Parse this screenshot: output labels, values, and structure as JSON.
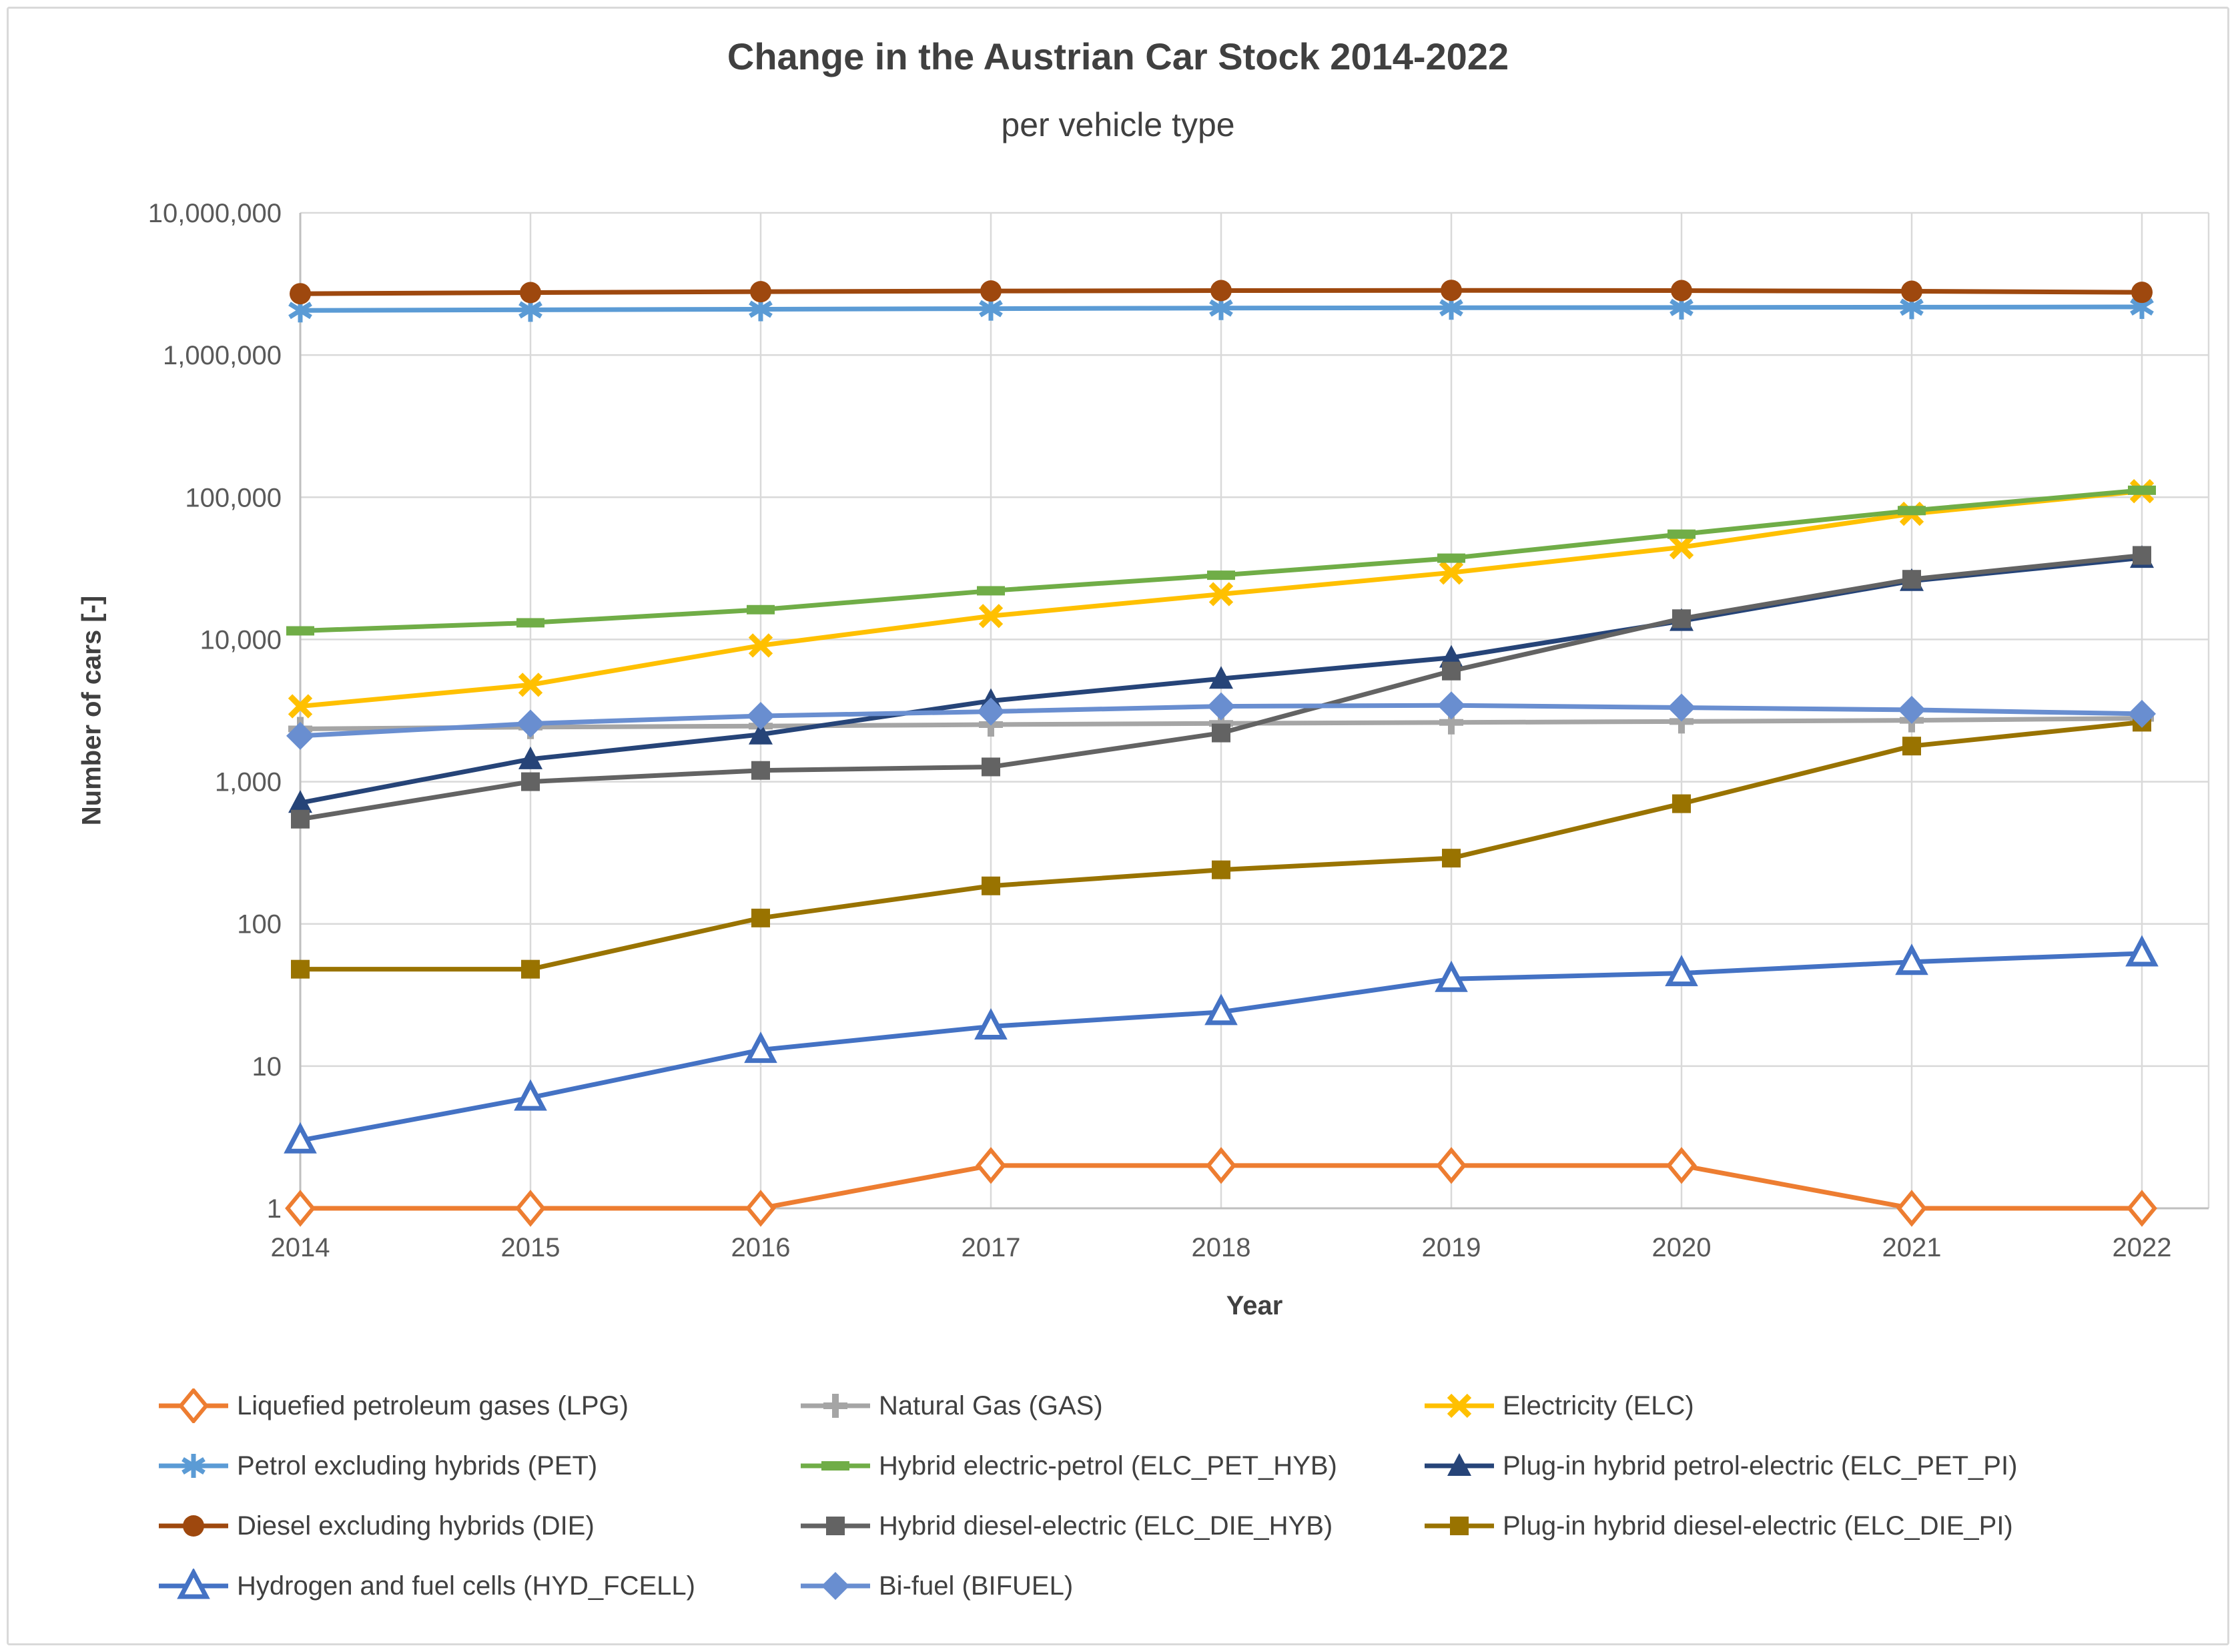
{
  "chart_data": {
    "type": "line",
    "title": "Change in the Austrian Car Stock 2014-2022",
    "subtitle": "per vehicle type",
    "xlabel": "Year",
    "ylabel": "Number of cars [-]",
    "y_scale": "log",
    "ylim": [
      1,
      10000000
    ],
    "grid": true,
    "legend_position": "bottom",
    "y_ticks": [
      1,
      10,
      100,
      1000,
      10000,
      100000,
      1000000,
      10000000
    ],
    "y_tick_labels": [
      "1",
      "10",
      "100",
      "1,000",
      "10,000",
      "100,000",
      "1,000,000",
      "10,000,000"
    ],
    "x": [
      2014,
      2015,
      2016,
      2017,
      2018,
      2019,
      2020,
      2021,
      2022
    ],
    "series": [
      {
        "name": "Liquefied petroleum gases (LPG)",
        "code": "LPG",
        "color": "#ED7D31",
        "marker": "diamond-open",
        "values": [
          1,
          1,
          1,
          2,
          2,
          2,
          2,
          1,
          1
        ]
      },
      {
        "name": "Natural Gas (GAS)",
        "code": "GAS",
        "color": "#A5A5A5",
        "marker": "plus",
        "values": [
          2350,
          2420,
          2460,
          2520,
          2570,
          2610,
          2650,
          2700,
          2790
        ]
      },
      {
        "name": "Electricity (ELC)",
        "code": "ELC",
        "color": "#FFC000",
        "marker": "x",
        "values": [
          3390,
          4800,
          9070,
          14620,
          20830,
          29520,
          44510,
          76540,
          110370
        ]
      },
      {
        "name": "Petrol excluding hybrids (PET)",
        "code": "PET",
        "color": "#5B9BD5",
        "marker": "asterisk",
        "values": [
          2060000,
          2080000,
          2100000,
          2120000,
          2140000,
          2150000,
          2160000,
          2170000,
          2180000
        ]
      },
      {
        "name": "Hybrid electric-petrol (ELC_PET_HYB)",
        "code": "ELC_PET_HYB",
        "color": "#70AD47",
        "marker": "dash",
        "values": [
          11500,
          13100,
          16200,
          22000,
          28300,
          37300,
          55000,
          80600,
          112000
        ]
      },
      {
        "name": "Plug-in hybrid petrol-electric (ELC_PET_PI)",
        "code": "ELC_PET_PI",
        "color": "#264478",
        "marker": "triangle",
        "values": [
          710,
          1440,
          2150,
          3700,
          5300,
          7450,
          13500,
          25800,
          37500
        ]
      },
      {
        "name": "Diesel excluding hybrids (DIE)",
        "code": "DIE",
        "color": "#9E480E",
        "marker": "circle",
        "values": [
          2700000,
          2750000,
          2790000,
          2820000,
          2840000,
          2850000,
          2840000,
          2810000,
          2760000
        ]
      },
      {
        "name": "Hybrid diesel-electric (ELC_DIE_HYB)",
        "code": "ELC_DIE_HYB",
        "color": "#636363",
        "marker": "square",
        "values": [
          545,
          1000,
          1200,
          1270,
          2200,
          6000,
          14000,
          26500,
          39000
        ]
      },
      {
        "name": "Plug-in hybrid diesel-electric (ELC_DIE_PI)",
        "code": "ELC_DIE_PI",
        "color": "#997300",
        "marker": "square",
        "values": [
          48,
          48,
          110,
          185,
          240,
          290,
          700,
          1780,
          2620
        ]
      },
      {
        "name": "Hydrogen and fuel cells (HYD_FCELL)",
        "code": "HYD_FCELL",
        "color": "#4472C4",
        "marker": "triangle-open",
        "values": [
          3,
          6,
          13,
          19,
          24,
          41,
          45,
          54,
          62
        ]
      },
      {
        "name": "Bi-fuel (BIFUEL)",
        "code": "BIFUEL",
        "color": "#698ED0",
        "marker": "diamond",
        "values": [
          2100,
          2560,
          2900,
          3110,
          3390,
          3440,
          3320,
          3200,
          3000
        ]
      }
    ],
    "style": {
      "grid_color": "#D9D9D9",
      "axis_color": "#BFBFBF",
      "tick_label_color": "#595959",
      "title_color": "#404040"
    }
  }
}
